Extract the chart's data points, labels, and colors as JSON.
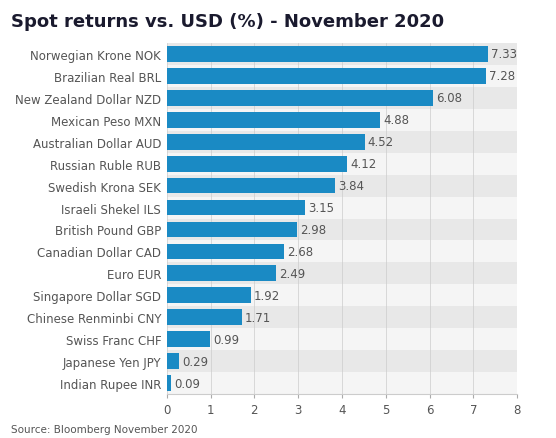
{
  "title": "Spot returns vs. USD (%) - November 2020",
  "categories": [
    "Norwegian Krone NOK",
    "Brazilian Real BRL",
    "New Zealand Dollar NZD",
    "Mexican Peso MXN",
    "Australian Dollar AUD",
    "Russian Ruble RUB",
    "Swedish Krona SEK",
    "Israeli Shekel ILS",
    "British Pound GBP",
    "Canadian Dollar CAD",
    "Euro EUR",
    "Singapore Dollar SGD",
    "Chinese Renminbi CNY",
    "Swiss Franc CHF",
    "Japanese Yen JPY",
    "Indian Rupee INR"
  ],
  "values": [
    7.33,
    7.28,
    6.08,
    4.88,
    4.52,
    4.12,
    3.84,
    3.15,
    2.98,
    2.68,
    2.49,
    1.92,
    1.71,
    0.99,
    0.29,
    0.09
  ],
  "bar_color": "#1a8ac4",
  "bg_color_odd": "#e8e8e8",
  "bg_color_even": "#f5f5f5",
  "title_fontsize": 13,
  "label_fontsize": 8.5,
  "value_fontsize": 8.5,
  "xlim": [
    0,
    8
  ],
  "xticks": [
    0,
    1,
    2,
    3,
    4,
    5,
    6,
    7,
    8
  ],
  "source_text": "Source: Bloomberg November 2020",
  "title_color": "#1a1a2e",
  "text_color": "#555555",
  "source_fontsize": 7.5
}
